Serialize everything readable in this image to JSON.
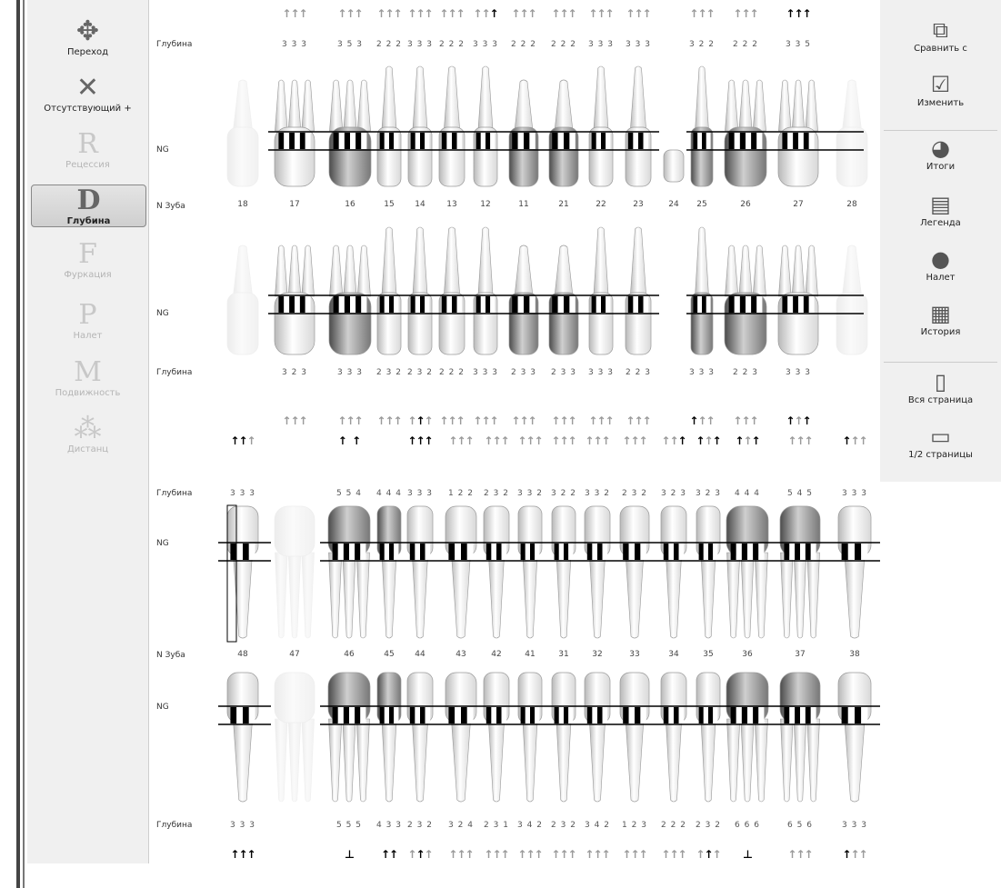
{
  "left_toolbar": [
    {
      "label": "Переход",
      "icon": "move-arrows-icon",
      "glyph": "✥",
      "state": "normal"
    },
    {
      "label": "Отсутствующий +",
      "icon": "missing-tooth-x-icon",
      "glyph": "✕",
      "state": "normal"
    },
    {
      "label": "Рецессия",
      "icon": "recession-r-icon",
      "glyph": "R",
      "state": "disabled"
    },
    {
      "label": "Глубина",
      "icon": "depth-d-icon",
      "glyph": "D",
      "state": "selected"
    },
    {
      "label": "Фуркация",
      "icon": "furcation-f-icon",
      "glyph": "F",
      "state": "disabled"
    },
    {
      "label": "Налет",
      "icon": "plaque-p-icon",
      "glyph": "P",
      "state": "disabled"
    },
    {
      "label": "Подвижность",
      "icon": "mobility-m-icon",
      "glyph": "M",
      "state": "disabled"
    },
    {
      "label": "Дистанц",
      "icon": "distance-icon",
      "glyph": "⁂",
      "state": "disabled"
    }
  ],
  "right_toolbar": [
    {
      "label": "Сравнить с",
      "icon": "compare-icon",
      "glyph": "⧉"
    },
    {
      "label": "Изменить",
      "icon": "edit-icon",
      "glyph": "☑"
    },
    {
      "label": "Итоги",
      "icon": "summary-icon",
      "glyph": "◕"
    },
    {
      "label": "Легенда",
      "icon": "legend-icon",
      "glyph": "▤"
    },
    {
      "label": "Налет",
      "icon": "plaque-ball-icon",
      "glyph": "●"
    },
    {
      "label": "История",
      "icon": "history-icon",
      "glyph": "▦"
    },
    {
      "label": "Вся страница",
      "icon": "full-page-icon",
      "glyph": "▯"
    },
    {
      "label": "1/2 страницы",
      "icon": "half-page-icon",
      "glyph": "▭"
    }
  ],
  "row_labels": {
    "depth": "Глубина",
    "ng": "NG",
    "tooth_no": "N Зуба"
  },
  "upper": {
    "teeth": [
      "18",
      "17",
      "16",
      "15",
      "14",
      "13",
      "12",
      "11",
      "21",
      "22",
      "23",
      "24",
      "25",
      "26",
      "27",
      "28"
    ],
    "buccal_arrows": [
      "",
      "ggg",
      "ggg",
      "ggg",
      "ggg",
      "ggg",
      "ggk",
      "ggg",
      "ggg",
      "ggg",
      "ggg",
      "",
      "ggg",
      "ggg",
      "kkk",
      ""
    ],
    "buccal_depth": [
      "",
      "3 3 3",
      "3 5 3",
      "2 2 2",
      "3 3 3",
      "2 2 2",
      "3 3 3",
      "2 2 2",
      "2 2 2",
      "3 3 3",
      "3 3 3",
      "",
      "3 2 2",
      "2 2 2",
      "3 3 5",
      ""
    ],
    "palatal_depth": [
      "",
      "3 2 3",
      "3 3 3",
      "2 3 2",
      "2 3 2",
      "2 2 2",
      "3 3 3",
      "2 3 3",
      "2 3 3",
      "3 3 3",
      "2 2 3",
      "",
      "3 3 3",
      "2 2 3",
      "3 3 3",
      ""
    ],
    "palatal_arrows": [
      "",
      "ggg",
      "ggg",
      "ggg",
      "gkg",
      "ggg",
      "ggg",
      "ggg",
      "ggg",
      "ggg",
      "ggg",
      "",
      "kgg",
      "ggg",
      "kgk",
      ""
    ],
    "state": [
      "missing",
      "normal",
      "dark",
      "normal",
      "normal",
      "normal",
      "normal",
      "dark",
      "dark",
      "normal",
      "normal",
      "crown",
      "dark",
      "dark",
      "normal",
      "missing"
    ]
  },
  "lower": {
    "teeth": [
      "48",
      "47",
      "46",
      "45",
      "44",
      "43",
      "42",
      "41",
      "31",
      "32",
      "33",
      "34",
      "35",
      "36",
      "37",
      "38"
    ],
    "buccal_arrows": [
      "kkg",
      "",
      "k k",
      "",
      "kkk",
      "ggg",
      "ggg",
      "ggg",
      "ggg",
      "ggg",
      "ggg",
      "ggk",
      "kgk",
      "kgk",
      "ggg",
      "kgg"
    ],
    "buccal_depth": [
      "3 3 3",
      "",
      "5 5 4",
      "4 4 4",
      "3 3 3",
      "1 2 2",
      "2 3 2",
      "3 3 2",
      "3 2 2",
      "3 3 2",
      "2 3 2",
      "3 2 3",
      "3 2 3",
      "4 4 4",
      "5 4 5",
      "3 3 3"
    ],
    "lingual_depth": [
      "3 3 3",
      "",
      "5 5 5",
      "4 3 3",
      "2 3 2",
      "3 2 4",
      "2 3 1",
      "3 4 2",
      "2 3 2",
      "3 4 2",
      "1 2 3",
      "2 2 2",
      "2 3 2",
      "6 6 6",
      "6 5 6",
      "3 3 3"
    ],
    "lingual_arrows": [
      "kkk",
      "",
      "⊥",
      "kk",
      "gkg",
      "ggg",
      "ggg",
      "ggg",
      "ggg",
      "ggg",
      "ggg",
      "ggg",
      "gkg",
      "⊥",
      "ggg",
      "kgg"
    ],
    "state": [
      "normal",
      "missing",
      "dark",
      "dark",
      "normal",
      "normal",
      "normal",
      "normal",
      "normal",
      "normal",
      "normal",
      "normal",
      "normal",
      "dark",
      "dark",
      "normal"
    ]
  }
}
